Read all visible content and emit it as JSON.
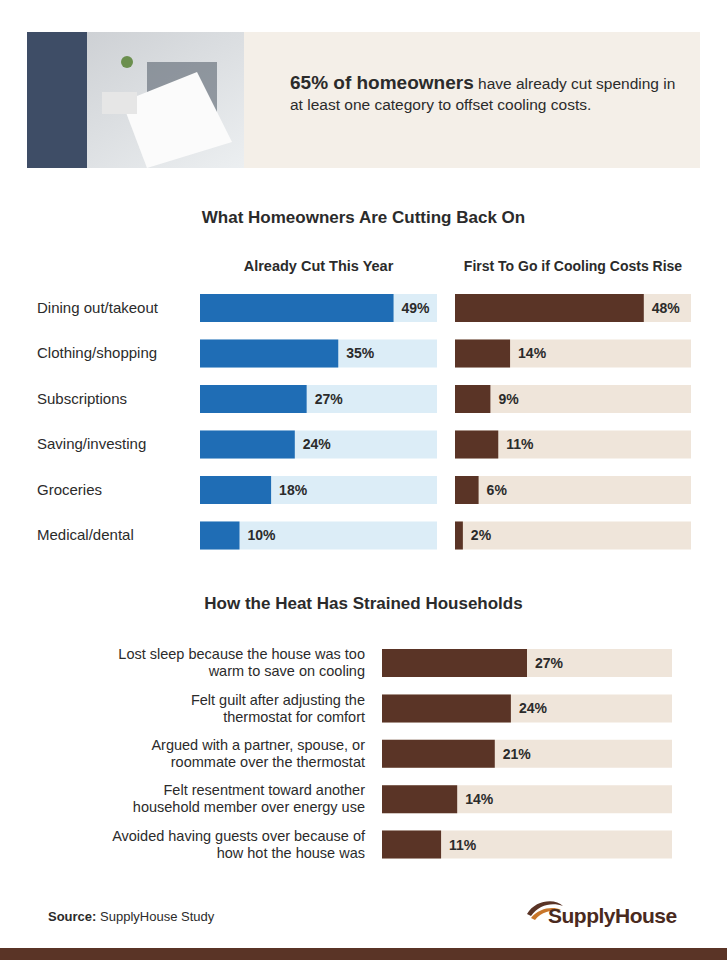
{
  "header": {
    "highlight": "65% of homeowners",
    "text": "have already cut spending in at least one category to offset cooling costs."
  },
  "section_title": "What Homeowners Are Cutting Back On",
  "chart_data": [
    {
      "type": "bar",
      "orientation": "horizontal",
      "title": "Already Cut This Year",
      "categories": [
        "Dining out/takeout",
        "Clothing/shopping",
        "Subscriptions",
        "Saving/investing",
        "Groceries",
        "Medical/dental"
      ],
      "values": [
        49,
        35,
        27,
        24,
        18,
        10
      ],
      "value_labels": [
        "49%",
        "35%",
        "27%",
        "24%",
        "18%",
        "10%"
      ],
      "color": "#1f6db5",
      "xlim": [
        0,
        60
      ],
      "data_labels": true,
      "tick_labels": "y"
    },
    {
      "type": "bar",
      "orientation": "horizontal",
      "title": "First To Go if Cooling Costs Rise",
      "categories": [
        "Dining out/takeout",
        "Clothing/shopping",
        "Subscriptions",
        "Saving/investing",
        "Groceries",
        "Medical/dental"
      ],
      "values": [
        48,
        14,
        9,
        11,
        6,
        2
      ],
      "value_labels": [
        "48%",
        "14%",
        "9%",
        "11%",
        "6%",
        "2%"
      ],
      "color": "#5a3426",
      "xlim": [
        0,
        60
      ],
      "data_labels": true,
      "tick_labels": false
    },
    {
      "type": "bar",
      "orientation": "horizontal",
      "title": "How the Heat Has Strained Households",
      "categories": [
        "Lost sleep because the house was too warm to save on cooling",
        "Felt guilt after adjusting the thermostat for comfort",
        "Argued with a partner, spouse, or roommate over the thermostat",
        "Felt resentment toward another household member over energy use",
        "Avoided having guests over because of how hot the house was"
      ],
      "values": [
        27,
        24,
        21,
        14,
        11
      ],
      "value_labels": [
        "27%",
        "24%",
        "21%",
        "14%",
        "11%"
      ],
      "color": "#5a3426",
      "xlim": [
        0,
        54
      ],
      "data_labels": true,
      "tick_labels": "y"
    }
  ],
  "source": {
    "label": "Source:",
    "text": "SupplyHouse Study"
  },
  "logo": "SupplyHouse"
}
